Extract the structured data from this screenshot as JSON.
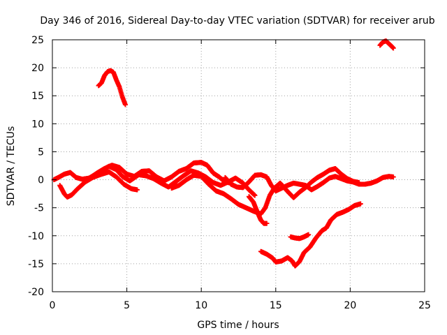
{
  "chart_data": {
    "type": "scatter",
    "title": "Day 346 of 2016, Sidereal Day-to-day VTEC variation (SDTVAR) for receiver arub",
    "xlabel": "GPS time / hours",
    "ylabel": "SDTVAR / TECUs",
    "xlim": [
      0,
      25
    ],
    "ylim": [
      -20,
      25
    ],
    "xticks": [
      0,
      5,
      10,
      15,
      20,
      25
    ],
    "yticks": [
      -20,
      -15,
      -10,
      -5,
      0,
      5,
      10,
      15,
      20,
      25
    ],
    "grid": true,
    "marker": "+",
    "color": "#ff0000",
    "series": [
      {
        "name": "track-a",
        "points": [
          [
            0.1,
            0
          ],
          [
            0.4,
            0.4
          ],
          [
            0.8,
            1
          ],
          [
            1.2,
            1.3
          ],
          [
            1.6,
            0.4
          ],
          [
            2.0,
            0.1
          ],
          [
            2.5,
            0.3
          ],
          [
            3.0,
            1.2
          ],
          [
            3.5,
            2.0
          ],
          [
            4.0,
            2.6
          ],
          [
            4.5,
            2.2
          ],
          [
            5.0,
            1.0
          ],
          [
            5.5,
            0.6
          ],
          [
            6.0,
            1.5
          ],
          [
            6.5,
            1.6
          ],
          [
            7.0,
            0.5
          ],
          [
            7.5,
            -0.2
          ],
          [
            8.0,
            0.5
          ],
          [
            8.5,
            1.5
          ],
          [
            9.0,
            2.0
          ],
          [
            9.5,
            3.0
          ],
          [
            10.0,
            3.1
          ],
          [
            10.4,
            2.6
          ],
          [
            10.8,
            1.2
          ],
          [
            11.2,
            0.5
          ],
          [
            11.6,
            -0.4
          ],
          [
            12.0,
            -0.6
          ]
        ]
      },
      {
        "name": "track-b",
        "points": [
          [
            0.5,
            -1.0
          ],
          [
            0.8,
            -2.5
          ],
          [
            1.0,
            -3.1
          ],
          [
            1.3,
            -2.7
          ],
          [
            1.7,
            -1.6
          ],
          [
            2.2,
            -0.4
          ],
          [
            2.7,
            0.4
          ],
          [
            3.2,
            0.9
          ],
          [
            3.8,
            1.4
          ],
          [
            4.3,
            0.5
          ],
          [
            4.8,
            -0.8
          ],
          [
            5.3,
            -1.6
          ],
          [
            5.7,
            -1.8
          ]
        ]
      },
      {
        "name": "track-c",
        "points": [
          [
            2.4,
            0.2
          ],
          [
            2.8,
            0.8
          ],
          [
            3.3,
            1.6
          ],
          [
            3.8,
            2.4
          ],
          [
            4.3,
            1.8
          ],
          [
            4.7,
            0.6
          ],
          [
            5.2,
            -0.2
          ],
          [
            5.8,
            0.9
          ],
          [
            6.3,
            0.7
          ],
          [
            6.8,
            0.2
          ],
          [
            7.3,
            -0.6
          ],
          [
            7.8,
            -1.3
          ],
          [
            8.3,
            -0.3
          ],
          [
            8.8,
            0.7
          ],
          [
            9.3,
            1.6
          ],
          [
            9.8,
            1.2
          ],
          [
            10.3,
            0.5
          ],
          [
            10.8,
            -0.5
          ],
          [
            11.3,
            -1.0
          ],
          [
            11.8,
            -0.4
          ],
          [
            12.3,
            0.3
          ],
          [
            12.8,
            -0.6
          ],
          [
            13.2,
            -1.8
          ],
          [
            13.6,
            -2.8
          ]
        ]
      },
      {
        "name": "track-d",
        "points": [
          [
            8.0,
            -1.5
          ],
          [
            8.5,
            -1.0
          ],
          [
            9.0,
            0.0
          ],
          [
            9.5,
            0.8
          ],
          [
            10.0,
            0.6
          ],
          [
            10.5,
            -0.8
          ],
          [
            11.0,
            -2.0
          ],
          [
            11.5,
            -2.5
          ],
          [
            12.0,
            -3.4
          ],
          [
            12.5,
            -4.4
          ],
          [
            13.0,
            -5.0
          ],
          [
            13.5,
            -5.6
          ],
          [
            14.0,
            -6.1
          ],
          [
            14.3,
            -5.0
          ],
          [
            14.6,
            -2.8
          ],
          [
            14.9,
            -1.5
          ],
          [
            15.3,
            -0.6
          ],
          [
            15.8,
            -2.1
          ],
          [
            16.2,
            -3.2
          ],
          [
            16.6,
            -2.2
          ],
          [
            17.0,
            -1.4
          ],
          [
            17.4,
            -0.4
          ],
          [
            17.8,
            0.4
          ],
          [
            18.2,
            1.0
          ],
          [
            18.6,
            1.7
          ],
          [
            19.0,
            2.0
          ],
          [
            19.4,
            1.0
          ],
          [
            19.8,
            0.2
          ],
          [
            20.2,
            -0.3
          ],
          [
            20.6,
            -0.5
          ]
        ]
      },
      {
        "name": "track-e",
        "points": [
          [
            11.6,
            0.4
          ],
          [
            12.0,
            -0.8
          ],
          [
            12.4,
            -1.3
          ],
          [
            12.8,
            -1.4
          ],
          [
            13.2,
            -0.4
          ],
          [
            13.6,
            0.8
          ],
          [
            14.0,
            0.9
          ],
          [
            14.4,
            0.5
          ],
          [
            14.7,
            -1.0
          ],
          [
            15.0,
            -2.0
          ],
          [
            15.4,
            -1.5
          ],
          [
            15.8,
            -1.0
          ],
          [
            16.2,
            -0.6
          ],
          [
            16.6,
            -0.8
          ],
          [
            17.0,
            -1.0
          ],
          [
            17.4,
            -1.8
          ],
          [
            17.8,
            -1.2
          ],
          [
            18.2,
            -0.5
          ],
          [
            18.6,
            0.3
          ],
          [
            19.0,
            0.6
          ],
          [
            19.4,
            0.2
          ],
          [
            19.8,
            -0.2
          ],
          [
            20.2,
            -0.4
          ],
          [
            20.6,
            -0.8
          ],
          [
            21.0,
            -0.8
          ],
          [
            21.4,
            -0.6
          ],
          [
            21.8,
            -0.2
          ],
          [
            22.2,
            0.4
          ],
          [
            22.6,
            0.6
          ],
          [
            22.9,
            0.5
          ]
        ]
      },
      {
        "name": "track-f",
        "points": [
          [
            13.2,
            -3.0
          ],
          [
            13.5,
            -4.0
          ],
          [
            13.8,
            -6.0
          ],
          [
            14.0,
            -7.2
          ],
          [
            14.2,
            -7.8
          ],
          [
            14.4,
            -7.8
          ]
        ]
      },
      {
        "name": "track-g",
        "points": [
          [
            14.0,
            -12.8
          ],
          [
            14.4,
            -13.3
          ],
          [
            14.8,
            -14.0
          ],
          [
            15.0,
            -14.7
          ],
          [
            15.4,
            -14.5
          ],
          [
            15.8,
            -13.9
          ],
          [
            16.1,
            -14.5
          ],
          [
            16.3,
            -15.4
          ],
          [
            16.6,
            -14.6
          ],
          [
            16.9,
            -13.0
          ],
          [
            17.3,
            -12.0
          ],
          [
            17.7,
            -10.4
          ],
          [
            18.1,
            -9.1
          ],
          [
            18.4,
            -8.6
          ],
          [
            18.7,
            -7.2
          ],
          [
            19.1,
            -6.2
          ],
          [
            19.5,
            -5.8
          ],
          [
            19.9,
            -5.3
          ],
          [
            20.3,
            -4.6
          ],
          [
            20.7,
            -4.3
          ]
        ]
      },
      {
        "name": "track-h",
        "points": [
          [
            16.0,
            -10.2
          ],
          [
            16.3,
            -10.4
          ],
          [
            16.6,
            -10.5
          ],
          [
            16.9,
            -10.2
          ],
          [
            17.2,
            -9.8
          ]
        ]
      },
      {
        "name": "track-i",
        "points": [
          [
            3.1,
            16.8
          ],
          [
            3.3,
            17.3
          ],
          [
            3.5,
            18.6
          ],
          [
            3.7,
            19.3
          ],
          [
            3.9,
            19.5
          ],
          [
            4.1,
            19.2
          ],
          [
            4.3,
            17.8
          ],
          [
            4.5,
            16.6
          ],
          [
            4.7,
            14.8
          ],
          [
            4.9,
            13.4
          ]
        ]
      },
      {
        "name": "track-j",
        "points": [
          [
            22.0,
            24.0
          ],
          [
            22.2,
            24.6
          ],
          [
            22.4,
            24.8
          ],
          [
            22.6,
            24.3
          ],
          [
            22.8,
            23.8
          ],
          [
            22.9,
            23.5
          ]
        ]
      }
    ]
  }
}
